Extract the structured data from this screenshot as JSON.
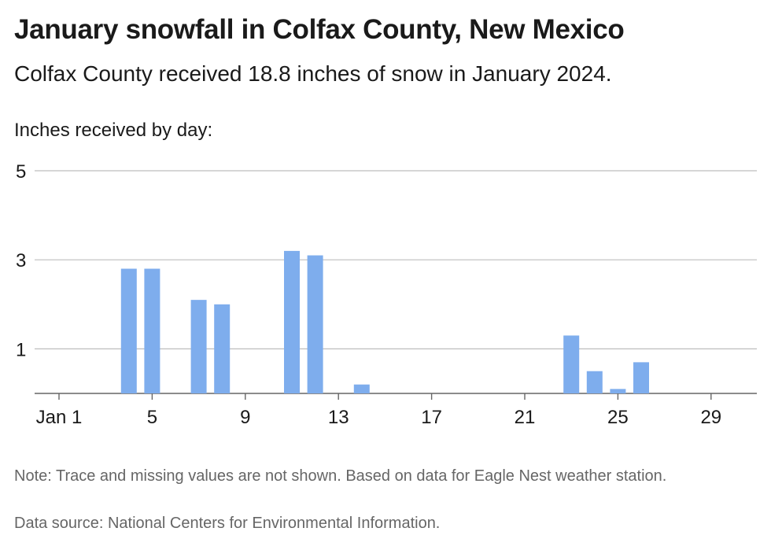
{
  "title": "January snowfall in Colfax County, New Mexico",
  "subtitle": "Colfax County received 18.8 inches of snow in January 2024.",
  "axis_caption": "Inches received by day:",
  "note": "Note: Trace and missing values are not shown. Based on data for Eagle Nest weather station.",
  "source": "Data source: National Centers for Environmental Information.",
  "colors": {
    "bar": "#7eaded",
    "grid": "#bdbdbd",
    "axis": "#666666",
    "text": "#1a1a1a"
  },
  "chart_data": {
    "type": "bar",
    "x": [
      1,
      2,
      3,
      4,
      5,
      6,
      7,
      8,
      9,
      10,
      11,
      12,
      13,
      14,
      15,
      16,
      17,
      18,
      19,
      20,
      21,
      22,
      23,
      24,
      25,
      26,
      27,
      28,
      29,
      30,
      31
    ],
    "values": [
      null,
      null,
      null,
      2.8,
      2.8,
      null,
      2.1,
      2.0,
      null,
      null,
      3.2,
      3.1,
      null,
      0.2,
      null,
      null,
      null,
      null,
      null,
      null,
      null,
      null,
      1.3,
      0.5,
      0.1,
      0.7,
      null,
      null,
      null,
      null,
      null
    ],
    "xtick_values": [
      1,
      5,
      9,
      13,
      17,
      21,
      25,
      29
    ],
    "xtick_labels": [
      "Jan 1",
      "5",
      "9",
      "13",
      "17",
      "21",
      "25",
      "29"
    ],
    "yticks": [
      1,
      3,
      5
    ],
    "ylim": [
      0,
      5
    ],
    "grid": true
  }
}
